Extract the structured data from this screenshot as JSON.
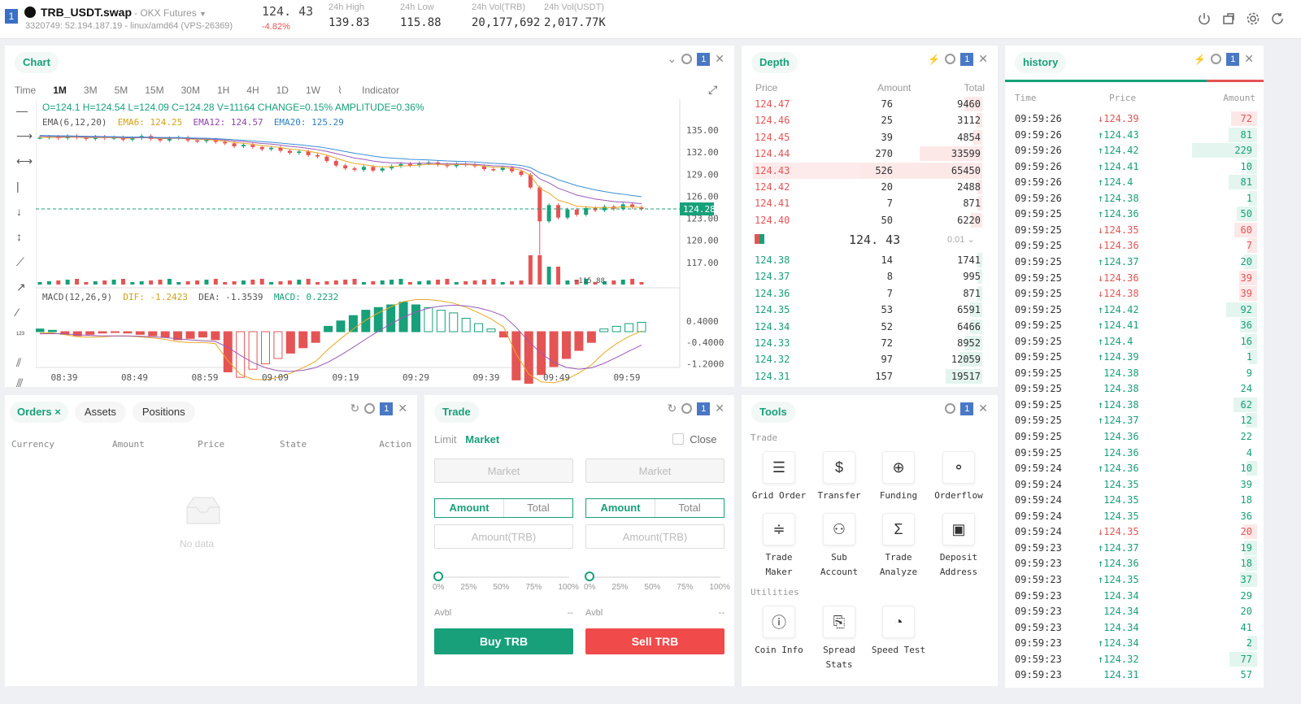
{
  "header": {
    "account_badge": "1",
    "symbol": "TRB_USDT.swap",
    "exchange": "- OKX Futures",
    "server": "3320749: 52.194.187.19 - linux/amd64 (VPS-26369)",
    "last_price": "124. 43",
    "change_pct": "-4.82%",
    "stats": [
      {
        "label": "24h High",
        "value": "139.83"
      },
      {
        "label": "24h Low",
        "value": "115.88"
      },
      {
        "label": "24h Vol(TRB)",
        "value": "20,177,692"
      },
      {
        "label": "24h Vol(USDT)",
        "value": "2,017.77K"
      }
    ],
    "icons": [
      "power-icon",
      "share-icon",
      "settings-icon",
      "refresh-icon"
    ]
  },
  "chart_panel": {
    "title": "Chart",
    "badge": "1",
    "timeframes": [
      "Time",
      "1M",
      "3M",
      "5M",
      "15M",
      "30M",
      "1H",
      "4H",
      "1D",
      "1W"
    ],
    "active_timeframe": "1M",
    "indicator_label": "Indicator",
    "ohlc": "O=124.1 H=124.54 L=124.09 C=124.28 V=11164 CHANGE=0.15% AMPLITUDE=0.36%",
    "ema": {
      "ema_label": "EMA(6,12,20)",
      "ema6": "EMA6: 124.25",
      "ema12": "EMA12: 124.57",
      "ema20": "EMA20: 125.29"
    },
    "macd": {
      "label": "MACD(12,26,9)",
      "dif": "DIF: -1.2423",
      "dea": "DEA: -1.3539",
      "macd": "MACD: 0.2232"
    },
    "price_ticks": [
      "135.00",
      "132.00",
      "129.00",
      "126.00",
      "123.00",
      "120.00",
      "117.00"
    ],
    "current_price_tag": "124.28",
    "low_marker": "115.88",
    "macd_ticks": [
      "0.4000",
      "-0.4000",
      "-1.2000"
    ],
    "time_ticks": [
      "08:39",
      "08:49",
      "08:59",
      "09:09",
      "09:19",
      "09:29",
      "09:39",
      "09:49",
      "09:59"
    ]
  },
  "chart_data": {
    "type": "candlestick",
    "title": "",
    "x_label": "",
    "y_label": "",
    "y_range": [
      114,
      137
    ],
    "ema_colors": {
      "ema6": "#e8a825",
      "ema12": "#9b59b6",
      "ema20": "#3a8fd6"
    },
    "close_series": [
      134,
      134.1,
      133.9,
      134.2,
      134,
      133.8,
      134.1,
      133.9,
      134,
      133.7,
      133.9,
      134.2,
      133.8,
      133.6,
      133.9,
      134,
      133.6,
      133.5,
      133.7,
      133.4,
      133.2,
      132.8,
      133,
      132.7,
      132.4,
      132.6,
      132.2,
      131.9,
      132.1,
      131.6,
      131.4,
      130.8,
      130.2,
      129.8,
      129.6,
      130,
      129.5,
      129.8,
      130.1,
      130.4,
      130.2,
      130.5,
      130.6,
      130.3,
      130.1,
      130.4,
      130.3,
      130.1,
      129.7,
      129.6,
      129.9,
      129.4,
      128.9,
      127.2,
      122.6,
      124.8,
      123.1,
      124.2,
      123.5,
      124.4,
      124.1,
      124.6,
      124.3,
      124.9,
      124.5,
      124.28
    ],
    "volume_note": "relative",
    "macd_hist": [
      0.1,
      0.05,
      -0.1,
      -0.15,
      -0.1,
      -0.05,
      0,
      -0.05,
      -0.1,
      -0.15,
      -0.2,
      -0.3,
      -0.25,
      -0.2,
      -0.3,
      -1.5,
      -1.7,
      -1.4,
      -1.2,
      -1.0,
      -0.8,
      -0.6,
      -0.4,
      0.2,
      0.4,
      0.6,
      0.8,
      0.9,
      1.0,
      1.1,
      1.0,
      0.9,
      0.8,
      0.7,
      0.5,
      0.3,
      0.1,
      -0.2,
      -1.8,
      -2.0,
      -1.6,
      -1.3,
      -1.0,
      -0.7,
      -0.4,
      0.1,
      0.2,
      0.3,
      0.35
    ]
  },
  "depth_panel": {
    "title": "Depth",
    "badge": "1",
    "headers": [
      "Price",
      "Amount",
      "Total"
    ],
    "asks": [
      [
        "124.47",
        "76",
        "9460"
      ],
      [
        "124.46",
        "25",
        "3112"
      ],
      [
        "124.45",
        "39",
        "4854"
      ],
      [
        "124.44",
        "270",
        "33599"
      ],
      [
        "124.43",
        "526",
        "65450"
      ],
      [
        "124.42",
        "20",
        "2488"
      ],
      [
        "124.41",
        "7",
        "871"
      ],
      [
        "124.40",
        "50",
        "6220"
      ]
    ],
    "mid_price": "124. 43",
    "precision": "0.01",
    "bids": [
      [
        "124.38",
        "14",
        "1741"
      ],
      [
        "124.37",
        "8",
        "995"
      ],
      [
        "124.36",
        "7",
        "871"
      ],
      [
        "124.35",
        "53",
        "6591"
      ],
      [
        "124.34",
        "52",
        "6466"
      ],
      [
        "124.33",
        "72",
        "8952"
      ],
      [
        "124.32",
        "97",
        "12059"
      ],
      [
        "124.31",
        "157",
        "19517"
      ]
    ]
  },
  "history_panel": {
    "title": "history",
    "badge": "1",
    "headers": [
      "Time",
      "Price",
      "Amount"
    ],
    "trades": [
      [
        "09:59:26",
        "124.39",
        "72",
        "down"
      ],
      [
        "09:59:26",
        "124.43",
        "81",
        "up"
      ],
      [
        "09:59:26",
        "124.42",
        "229",
        "up"
      ],
      [
        "09:59:26",
        "124.41",
        "10",
        "up"
      ],
      [
        "09:59:26",
        "124.4",
        "81",
        "up"
      ],
      [
        "09:59:26",
        "124.38",
        "1",
        "up"
      ],
      [
        "09:59:25",
        "124.36",
        "50",
        "up"
      ],
      [
        "09:59:25",
        "124.35",
        "60",
        "down"
      ],
      [
        "09:59:25",
        "124.36",
        "7",
        "down"
      ],
      [
        "09:59:25",
        "124.37",
        "20",
        "up"
      ],
      [
        "09:59:25",
        "124.36",
        "39",
        "down"
      ],
      [
        "09:59:25",
        "124.38",
        "39",
        "down"
      ],
      [
        "09:59:25",
        "124.42",
        "92",
        "up"
      ],
      [
        "09:59:25",
        "124.41",
        "36",
        "up"
      ],
      [
        "09:59:25",
        "124.4",
        "16",
        "up"
      ],
      [
        "09:59:25",
        "124.39",
        "1",
        "up"
      ],
      [
        "09:59:25",
        "124.38",
        "9",
        "flat"
      ],
      [
        "09:59:25",
        "124.38",
        "24",
        "flat"
      ],
      [
        "09:59:25",
        "124.38",
        "62",
        "up"
      ],
      [
        "09:59:25",
        "124.37",
        "12",
        "up"
      ],
      [
        "09:59:25",
        "124.36",
        "22",
        "flat"
      ],
      [
        "09:59:25",
        "124.36",
        "4",
        "flat"
      ],
      [
        "09:59:24",
        "124.36",
        "10",
        "up"
      ],
      [
        "09:59:24",
        "124.35",
        "39",
        "flat"
      ],
      [
        "09:59:24",
        "124.35",
        "18",
        "flat"
      ],
      [
        "09:59:24",
        "124.35",
        "36",
        "flat"
      ],
      [
        "09:59:24",
        "124.35",
        "20",
        "down"
      ],
      [
        "09:59:23",
        "124.37",
        "19",
        "up"
      ],
      [
        "09:59:23",
        "124.36",
        "18",
        "up"
      ],
      [
        "09:59:23",
        "124.35",
        "37",
        "up"
      ],
      [
        "09:59:23",
        "124.34",
        "29",
        "flat"
      ],
      [
        "09:59:23",
        "124.34",
        "20",
        "flat"
      ],
      [
        "09:59:23",
        "124.34",
        "41",
        "flat"
      ],
      [
        "09:59:23",
        "124.34",
        "2",
        "up"
      ],
      [
        "09:59:23",
        "124.32",
        "77",
        "up"
      ],
      [
        "09:59:23",
        "124.31",
        "57",
        "flat"
      ]
    ]
  },
  "orders_panel": {
    "tabs": [
      "Orders",
      "Assets",
      "Positions"
    ],
    "badge": "1",
    "columns": [
      "Currency",
      "Amount",
      "Price",
      "State",
      "Action"
    ],
    "empty_text": "No data"
  },
  "trade_panel": {
    "title": "Trade",
    "badge": "1",
    "order_types": [
      "Limit",
      "Market"
    ],
    "close_label": "Close",
    "price_placeholder": "Market",
    "seg": [
      "Amount",
      "Total"
    ],
    "amount_placeholder": "Amount(TRB)",
    "percents": [
      "0%",
      "25%",
      "50%",
      "75%",
      "100%"
    ],
    "slider_value": 0,
    "avbl_label": "Avbl",
    "avbl_value": "--",
    "buy_label": "Buy TRB",
    "sell_label": "Sell TRB",
    "colors": {
      "buy": "#17a07a",
      "sell": "#f04a4a"
    }
  },
  "tools_panel": {
    "title": "Tools",
    "badge": "1",
    "trade_section": "Trade",
    "utilities_section": "Utilities",
    "trade_tools": [
      {
        "label": "Grid Order",
        "icon": "grid-order-icon",
        "glyph": "☰"
      },
      {
        "label": "Transfer",
        "icon": "transfer-icon",
        "glyph": "$"
      },
      {
        "label": "Funding",
        "icon": "funding-icon",
        "glyph": "⊕"
      },
      {
        "label": "Orderflow",
        "icon": "orderflow-icon",
        "glyph": "⚬"
      },
      {
        "label": "Trade Maker",
        "icon": "trade-maker-icon",
        "glyph": "≑"
      },
      {
        "label": "Sub Account",
        "icon": "sub-account-icon",
        "glyph": "⚇"
      },
      {
        "label": "Trade Analyze",
        "icon": "trade-analyze-icon",
        "glyph": "Σ"
      },
      {
        "label": "Deposit Address",
        "icon": "deposit-address-icon",
        "glyph": "▣"
      }
    ],
    "utility_tools": [
      {
        "label": "Coin Info",
        "icon": "coin-info-icon",
        "glyph": "ⓘ"
      },
      {
        "label": "Spread Stats",
        "icon": "spread-stats-icon",
        "glyph": "⎘"
      },
      {
        "label": "Speed Test",
        "icon": "speed-test-icon",
        "glyph": "◔"
      }
    ]
  },
  "colors": {
    "green": "#17a07a",
    "red": "#e55454",
    "blue_badge": "#4a78c4"
  }
}
